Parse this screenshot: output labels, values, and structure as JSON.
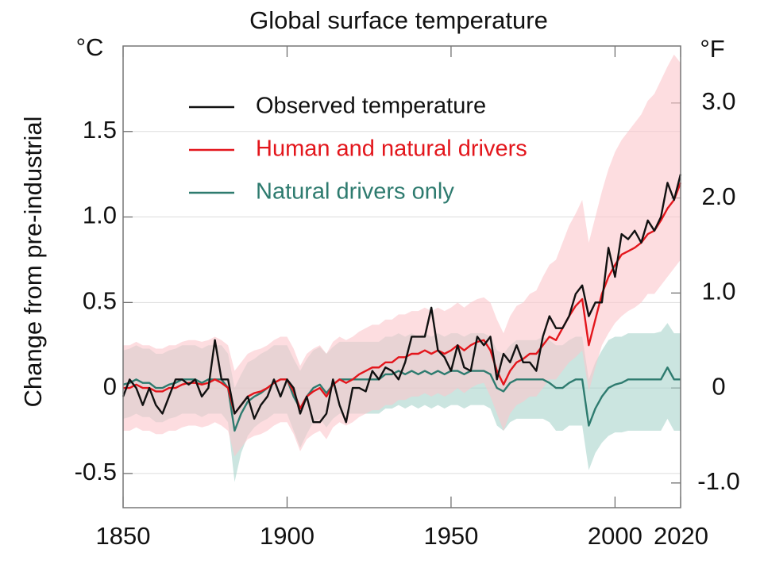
{
  "chart_data": {
    "type": "line",
    "title": "Global surface temperature",
    "y_unit": "°C",
    "y2_unit": "°F",
    "ylabel": "Change from pre-industrial",
    "x": [
      1850,
      1852,
      1854,
      1856,
      1858,
      1860,
      1862,
      1864,
      1866,
      1868,
      1870,
      1872,
      1874,
      1876,
      1878,
      1880,
      1882,
      1884,
      1886,
      1888,
      1890,
      1892,
      1894,
      1896,
      1898,
      1900,
      1902,
      1904,
      1906,
      1908,
      1910,
      1912,
      1914,
      1916,
      1918,
      1920,
      1922,
      1924,
      1926,
      1928,
      1930,
      1932,
      1934,
      1936,
      1938,
      1940,
      1942,
      1944,
      1946,
      1948,
      1950,
      1952,
      1954,
      1956,
      1958,
      1960,
      1962,
      1964,
      1966,
      1968,
      1970,
      1972,
      1974,
      1976,
      1978,
      1980,
      1982,
      1984,
      1986,
      1988,
      1990,
      1992,
      1994,
      1996,
      1998,
      2000,
      2002,
      2004,
      2006,
      2008,
      2010,
      2012,
      2014,
      2016,
      2018,
      2020
    ],
    "xlim": [
      1850,
      2020
    ],
    "xticks": [
      1850,
      1900,
      1950,
      2000,
      2020
    ],
    "ylim": [
      -0.7,
      2.0
    ],
    "yticks": [
      -0.5,
      0,
      0.5,
      {
        "value": 1,
        "label": "1.0"
      },
      1.5
    ],
    "y2lim": [
      -1.26,
      3.6
    ],
    "y2ticks": [
      {
        "value": -1,
        "label": "-1.0"
      },
      0,
      {
        "value": 1,
        "label": "1.0"
      },
      {
        "value": 2,
        "label": "2.0"
      },
      {
        "value": 3,
        "label": "3.0"
      }
    ],
    "grid": true,
    "legend": "upper left",
    "series": [
      {
        "name": "Observed temperature",
        "color": "#111111",
        "values": [
          -0.05,
          0.05,
          0.0,
          -0.1,
          0.0,
          -0.1,
          -0.15,
          -0.05,
          0.05,
          0.05,
          0.02,
          0.05,
          -0.05,
          0.0,
          0.28,
          0.05,
          0.05,
          -0.15,
          -0.1,
          -0.05,
          -0.18,
          -0.1,
          -0.05,
          0.05,
          -0.05,
          0.05,
          0.0,
          -0.15,
          -0.05,
          -0.2,
          -0.2,
          -0.15,
          0.05,
          -0.1,
          -0.2,
          0.0,
          0.0,
          -0.02,
          0.1,
          0.05,
          0.12,
          0.1,
          0.05,
          0.15,
          0.3,
          0.3,
          0.3,
          0.47,
          0.22,
          0.18,
          0.1,
          0.25,
          0.12,
          0.1,
          0.3,
          0.25,
          0.3,
          0.05,
          0.2,
          0.15,
          0.25,
          0.15,
          0.15,
          0.1,
          0.3,
          0.42,
          0.35,
          0.35,
          0.42,
          0.55,
          0.6,
          0.42,
          0.5,
          0.5,
          0.82,
          0.65,
          0.9,
          0.87,
          0.92,
          0.85,
          0.98,
          0.92,
          1.0,
          1.2,
          1.1,
          1.25
        ]
      },
      {
        "name": "Human and natural drivers",
        "color": "#e3161c",
        "band_color": "#fbc6cb",
        "values": [
          0.0,
          0.0,
          0.02,
          0.0,
          0.0,
          -0.02,
          -0.02,
          0.0,
          0.0,
          0.02,
          0.03,
          0.03,
          0.02,
          0.03,
          0.05,
          0.03,
          0.0,
          -0.15,
          -0.1,
          -0.05,
          -0.03,
          -0.02,
          0.0,
          0.03,
          0.05,
          0.05,
          -0.02,
          -0.12,
          -0.05,
          -0.02,
          0.0,
          -0.05,
          0.02,
          0.05,
          0.03,
          0.05,
          0.08,
          0.1,
          0.12,
          0.12,
          0.15,
          0.15,
          0.18,
          0.18,
          0.2,
          0.2,
          0.22,
          0.2,
          0.22,
          0.2,
          0.22,
          0.25,
          0.22,
          0.25,
          0.27,
          0.28,
          0.22,
          0.1,
          0.02,
          0.1,
          0.15,
          0.17,
          0.2,
          0.2,
          0.25,
          0.3,
          0.28,
          0.35,
          0.42,
          0.48,
          0.52,
          0.25,
          0.4,
          0.55,
          0.65,
          0.72,
          0.78,
          0.8,
          0.82,
          0.85,
          0.9,
          0.92,
          0.98,
          1.05,
          1.1,
          1.2
        ],
        "upper": [
          0.25,
          0.25,
          0.27,
          0.25,
          0.25,
          0.23,
          0.23,
          0.25,
          0.25,
          0.27,
          0.28,
          0.28,
          0.27,
          0.28,
          0.3,
          0.28,
          0.25,
          0.1,
          0.15,
          0.2,
          0.22,
          0.23,
          0.25,
          0.28,
          0.3,
          0.3,
          0.23,
          0.13,
          0.2,
          0.23,
          0.25,
          0.2,
          0.27,
          0.3,
          0.28,
          0.3,
          0.33,
          0.35,
          0.37,
          0.37,
          0.4,
          0.4,
          0.43,
          0.43,
          0.45,
          0.45,
          0.47,
          0.45,
          0.47,
          0.45,
          0.47,
          0.5,
          0.47,
          0.5,
          0.52,
          0.53,
          0.5,
          0.4,
          0.32,
          0.42,
          0.48,
          0.5,
          0.55,
          0.57,
          0.65,
          0.72,
          0.75,
          0.85,
          0.95,
          1.02,
          1.1,
          0.85,
          1.0,
          1.15,
          1.28,
          1.38,
          1.45,
          1.5,
          1.55,
          1.6,
          1.68,
          1.72,
          1.8,
          1.88,
          1.95,
          1.9
        ],
        "lower": [
          -0.25,
          -0.25,
          -0.23,
          -0.25,
          -0.25,
          -0.27,
          -0.27,
          -0.25,
          -0.25,
          -0.23,
          -0.22,
          -0.22,
          -0.23,
          -0.22,
          -0.2,
          -0.22,
          -0.25,
          -0.4,
          -0.35,
          -0.3,
          -0.28,
          -0.27,
          -0.25,
          -0.22,
          -0.2,
          -0.2,
          -0.27,
          -0.37,
          -0.3,
          -0.27,
          -0.25,
          -0.3,
          -0.23,
          -0.2,
          -0.22,
          -0.2,
          -0.17,
          -0.15,
          -0.13,
          -0.13,
          -0.1,
          -0.1,
          -0.07,
          -0.07,
          -0.05,
          -0.05,
          -0.03,
          -0.05,
          -0.03,
          -0.05,
          -0.03,
          0.0,
          -0.03,
          0.0,
          0.02,
          0.03,
          -0.05,
          -0.15,
          -0.25,
          -0.15,
          -0.1,
          -0.08,
          -0.05,
          -0.05,
          0.0,
          0.05,
          0.05,
          0.1,
          0.15,
          0.18,
          0.22,
          -0.02,
          0.12,
          0.25,
          0.32,
          0.38,
          0.42,
          0.45,
          0.47,
          0.5,
          0.55,
          0.55,
          0.6,
          0.65,
          0.7,
          0.75
        ]
      },
      {
        "name": "Natural drivers only",
        "color": "#2e7b6f",
        "band_color": "#a9d3cc",
        "values": [
          0.02,
          0.03,
          0.05,
          0.03,
          0.03,
          0.0,
          0.0,
          0.02,
          0.03,
          0.05,
          0.05,
          0.05,
          0.03,
          0.05,
          0.05,
          0.05,
          0.0,
          -0.25,
          -0.15,
          -0.08,
          -0.05,
          -0.03,
          0.0,
          0.03,
          0.05,
          0.05,
          -0.05,
          -0.12,
          -0.05,
          0.0,
          0.02,
          -0.03,
          0.02,
          0.05,
          0.05,
          0.05,
          0.05,
          0.05,
          0.05,
          0.05,
          0.08,
          0.08,
          0.1,
          0.08,
          0.1,
          0.08,
          0.1,
          0.08,
          0.1,
          0.08,
          0.1,
          0.1,
          0.08,
          0.1,
          0.1,
          0.1,
          0.08,
          0.0,
          -0.02,
          0.03,
          0.05,
          0.05,
          0.05,
          0.05,
          0.05,
          0.03,
          0.0,
          0.0,
          0.03,
          0.05,
          0.05,
          -0.22,
          -0.12,
          -0.05,
          0.0,
          0.02,
          0.03,
          0.05,
          0.05,
          0.05,
          0.05,
          0.05,
          0.05,
          0.12,
          0.05,
          0.05
        ],
        "upper": [
          0.22,
          0.23,
          0.25,
          0.23,
          0.23,
          0.2,
          0.2,
          0.22,
          0.23,
          0.25,
          0.25,
          0.25,
          0.23,
          0.25,
          0.25,
          0.25,
          0.2,
          0.0,
          0.08,
          0.15,
          0.17,
          0.2,
          0.22,
          0.25,
          0.25,
          0.25,
          0.17,
          0.1,
          0.17,
          0.22,
          0.24,
          0.2,
          0.24,
          0.27,
          0.27,
          0.27,
          0.27,
          0.27,
          0.27,
          0.27,
          0.3,
          0.3,
          0.32,
          0.3,
          0.32,
          0.3,
          0.32,
          0.3,
          0.32,
          0.3,
          0.32,
          0.32,
          0.3,
          0.32,
          0.32,
          0.32,
          0.3,
          0.22,
          0.2,
          0.25,
          0.28,
          0.28,
          0.28,
          0.28,
          0.3,
          0.28,
          0.25,
          0.25,
          0.28,
          0.3,
          0.3,
          0.05,
          0.15,
          0.22,
          0.28,
          0.3,
          0.3,
          0.32,
          0.32,
          0.32,
          0.32,
          0.32,
          0.33,
          0.38,
          0.32,
          0.32
        ],
        "lower": [
          -0.18,
          -0.17,
          -0.15,
          -0.17,
          -0.17,
          -0.2,
          -0.2,
          -0.18,
          -0.17,
          -0.15,
          -0.15,
          -0.15,
          -0.17,
          -0.15,
          -0.15,
          -0.15,
          -0.2,
          -0.55,
          -0.38,
          -0.28,
          -0.23,
          -0.2,
          -0.18,
          -0.15,
          -0.15,
          -0.15,
          -0.25,
          -0.35,
          -0.27,
          -0.2,
          -0.18,
          -0.23,
          -0.18,
          -0.15,
          -0.15,
          -0.15,
          -0.15,
          -0.15,
          -0.15,
          -0.15,
          -0.12,
          -0.12,
          -0.1,
          -0.12,
          -0.1,
          -0.12,
          -0.1,
          -0.12,
          -0.1,
          -0.12,
          -0.1,
          -0.1,
          -0.12,
          -0.1,
          -0.1,
          -0.1,
          -0.12,
          -0.22,
          -0.25,
          -0.2,
          -0.18,
          -0.18,
          -0.18,
          -0.18,
          -0.18,
          -0.2,
          -0.25,
          -0.25,
          -0.22,
          -0.22,
          -0.22,
          -0.48,
          -0.38,
          -0.32,
          -0.28,
          -0.26,
          -0.26,
          -0.25,
          -0.25,
          -0.25,
          -0.25,
          -0.25,
          -0.25,
          -0.18,
          -0.25,
          -0.25
        ]
      }
    ]
  }
}
